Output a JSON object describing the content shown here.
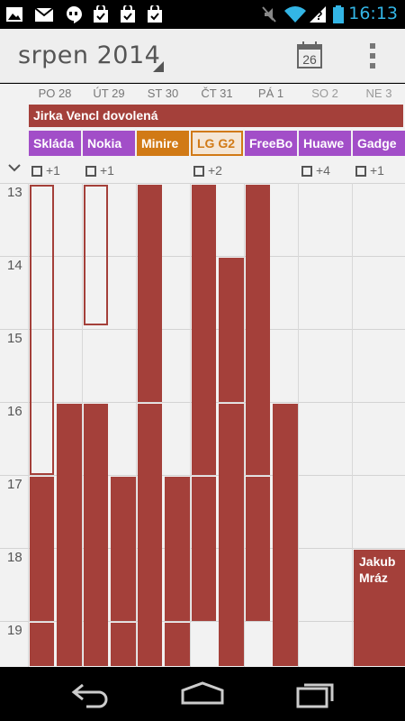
{
  "status_bar": {
    "time": "16:13",
    "icons": [
      "gallery-icon",
      "gmail-icon",
      "hangouts-icon",
      "shopping-bag-icon",
      "shopping-bag-icon",
      "shopping-bag-icon",
      "mute-icon",
      "wifi-icon",
      "no-sim-icon",
      "battery-icon"
    ]
  },
  "action_bar": {
    "title": "srpen 2014",
    "today_date": "26",
    "icons": [
      "today-icon",
      "overflow-menu-icon"
    ]
  },
  "days": [
    {
      "label": "PO 28",
      "weekend": false
    },
    {
      "label": "ÚT 29",
      "weekend": false
    },
    {
      "label": "ST 30",
      "weekend": false
    },
    {
      "label": "ČT 31",
      "weekend": false
    },
    {
      "label": "PÁ 1",
      "weekend": false
    },
    {
      "label": "SO 2",
      "weekend": true
    },
    {
      "label": "NE 3",
      "weekend": true
    }
  ],
  "all_day": {
    "spanning_event": "Jirka Vencl dovolená",
    "events": [
      {
        "title": "Skláda",
        "color": "#a24ec8",
        "style": "purple"
      },
      {
        "title": "Nokia",
        "color": "#a24ec8",
        "style": "purple"
      },
      {
        "title": "Minire",
        "color": "#d17a16",
        "style": "orange"
      },
      {
        "title": "LG G2",
        "color": "#d17a16",
        "style": "outline"
      },
      {
        "title": "FreeBo",
        "color": "#a24ec8",
        "style": "purple"
      },
      {
        "title": "Huawe",
        "color": "#a24ec8",
        "style": "purple"
      },
      {
        "title": "Gadge",
        "color": "#a24ec8",
        "style": "purple"
      }
    ],
    "more": [
      {
        "day": 0,
        "label": "+1"
      },
      {
        "day": 1,
        "label": "+1"
      },
      {
        "day": 3,
        "label": "+2"
      },
      {
        "day": 5,
        "label": "+4"
      },
      {
        "day": 6,
        "label": "+1"
      }
    ]
  },
  "hours": [
    "13",
    "14",
    "15",
    "16",
    "17",
    "18",
    "19"
  ],
  "timed_event_text": {
    "title": "Jakub Mráz"
  },
  "colors": {
    "event_red": "#a4403a",
    "event_purple": "#a24ec8",
    "event_orange": "#d17a16",
    "accent_blue": "#33b5e5"
  },
  "nav_bar": {
    "icons": [
      "back-icon",
      "home-icon",
      "recent-apps-icon"
    ]
  }
}
